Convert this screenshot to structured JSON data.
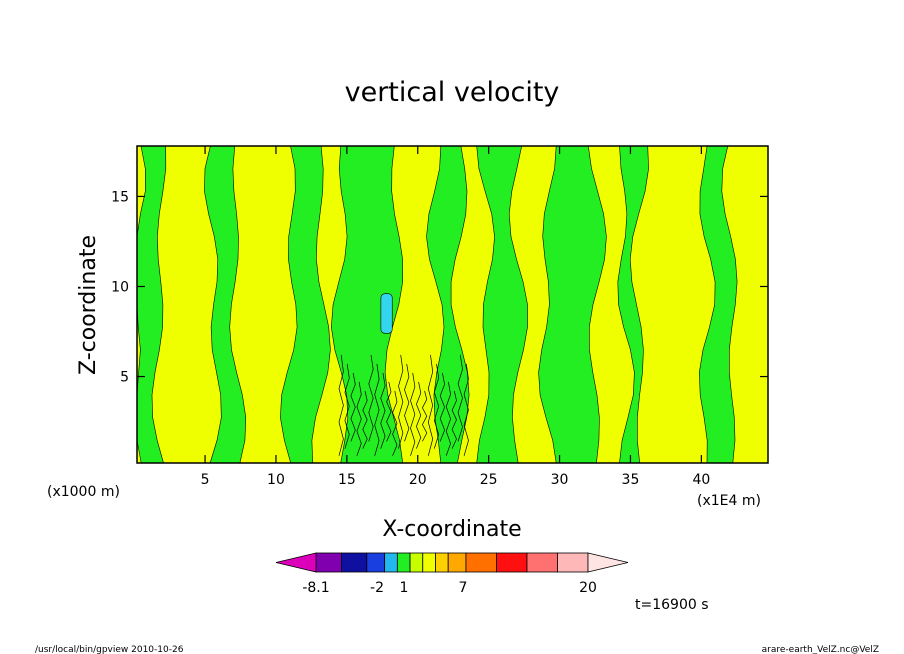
{
  "chart_data": {
    "type": "heatmap",
    "title": "vertical velocity",
    "xlabel": "X-coordinate",
    "ylabel": "Z-coordinate",
    "x_unit_left": "(x1000 m)",
    "x_unit_right": "(x1E4 m)",
    "xlim": [
      0.2,
      44.7
    ],
    "ylim": [
      0.2,
      17.8
    ],
    "x_ticks": [
      5,
      10,
      15,
      20,
      25,
      30,
      35,
      40
    ],
    "y_ticks": [
      5,
      10,
      15
    ],
    "time_label": "t=16900 s",
    "colors": {
      "positive_fill": "#f0ff00",
      "negative_fill": "#22ee22",
      "cyan_patch": "#33d6ee",
      "frame": "#000000"
    },
    "colorbar": {
      "swatches": [
        "#dd00bb",
        "#8000b0",
        "#1010a0",
        "#1a3fe0",
        "#22b8ee",
        "#22ee22",
        "#c8ff00",
        "#f0ff00",
        "#ffd000",
        "#ffa800",
        "#ff7000",
        "#ff1010",
        "#ff7070",
        "#ffb8b8",
        "#ffe4e4"
      ],
      "labels": [
        "-8.1",
        "-2",
        "1",
        "7",
        "20"
      ]
    },
    "vertical_bands": [
      {
        "x0": 0.2,
        "x1": 1.8,
        "sign": "negative"
      },
      {
        "x0": 1.8,
        "x1": 5.6,
        "sign": "positive"
      },
      {
        "x0": 5.6,
        "x1": 7.2,
        "sign": "negative"
      },
      {
        "x0": 7.2,
        "x1": 11.0,
        "sign": "positive"
      },
      {
        "x0": 11.0,
        "x1": 13.2,
        "sign": "negative"
      },
      {
        "x0": 13.2,
        "x1": 14.6,
        "sign": "positive"
      },
      {
        "x0": 14.6,
        "x1": 18.4,
        "sign": "negative"
      },
      {
        "x0": 18.4,
        "x1": 21.3,
        "sign": "positive"
      },
      {
        "x0": 21.3,
        "x1": 23.0,
        "sign": "negative"
      },
      {
        "x0": 23.0,
        "x1": 24.8,
        "sign": "positive"
      },
      {
        "x0": 24.8,
        "x1": 27.1,
        "sign": "negative"
      },
      {
        "x0": 27.1,
        "x1": 29.1,
        "sign": "positive"
      },
      {
        "x0": 29.1,
        "x1": 32.6,
        "sign": "negative"
      },
      {
        "x0": 32.6,
        "x1": 34.6,
        "sign": "positive"
      },
      {
        "x0": 34.6,
        "x1": 35.6,
        "sign": "negative"
      },
      {
        "x0": 35.6,
        "x1": 40.3,
        "sign": "positive"
      },
      {
        "x0": 40.3,
        "x1": 42.1,
        "sign": "negative"
      },
      {
        "x0": 42.1,
        "x1": 44.7,
        "sign": "positive"
      }
    ]
  },
  "footer": {
    "left": "/usr/local/bin/gpview  2010-10-26",
    "right": "arare-earth_VelZ.nc@VelZ"
  }
}
